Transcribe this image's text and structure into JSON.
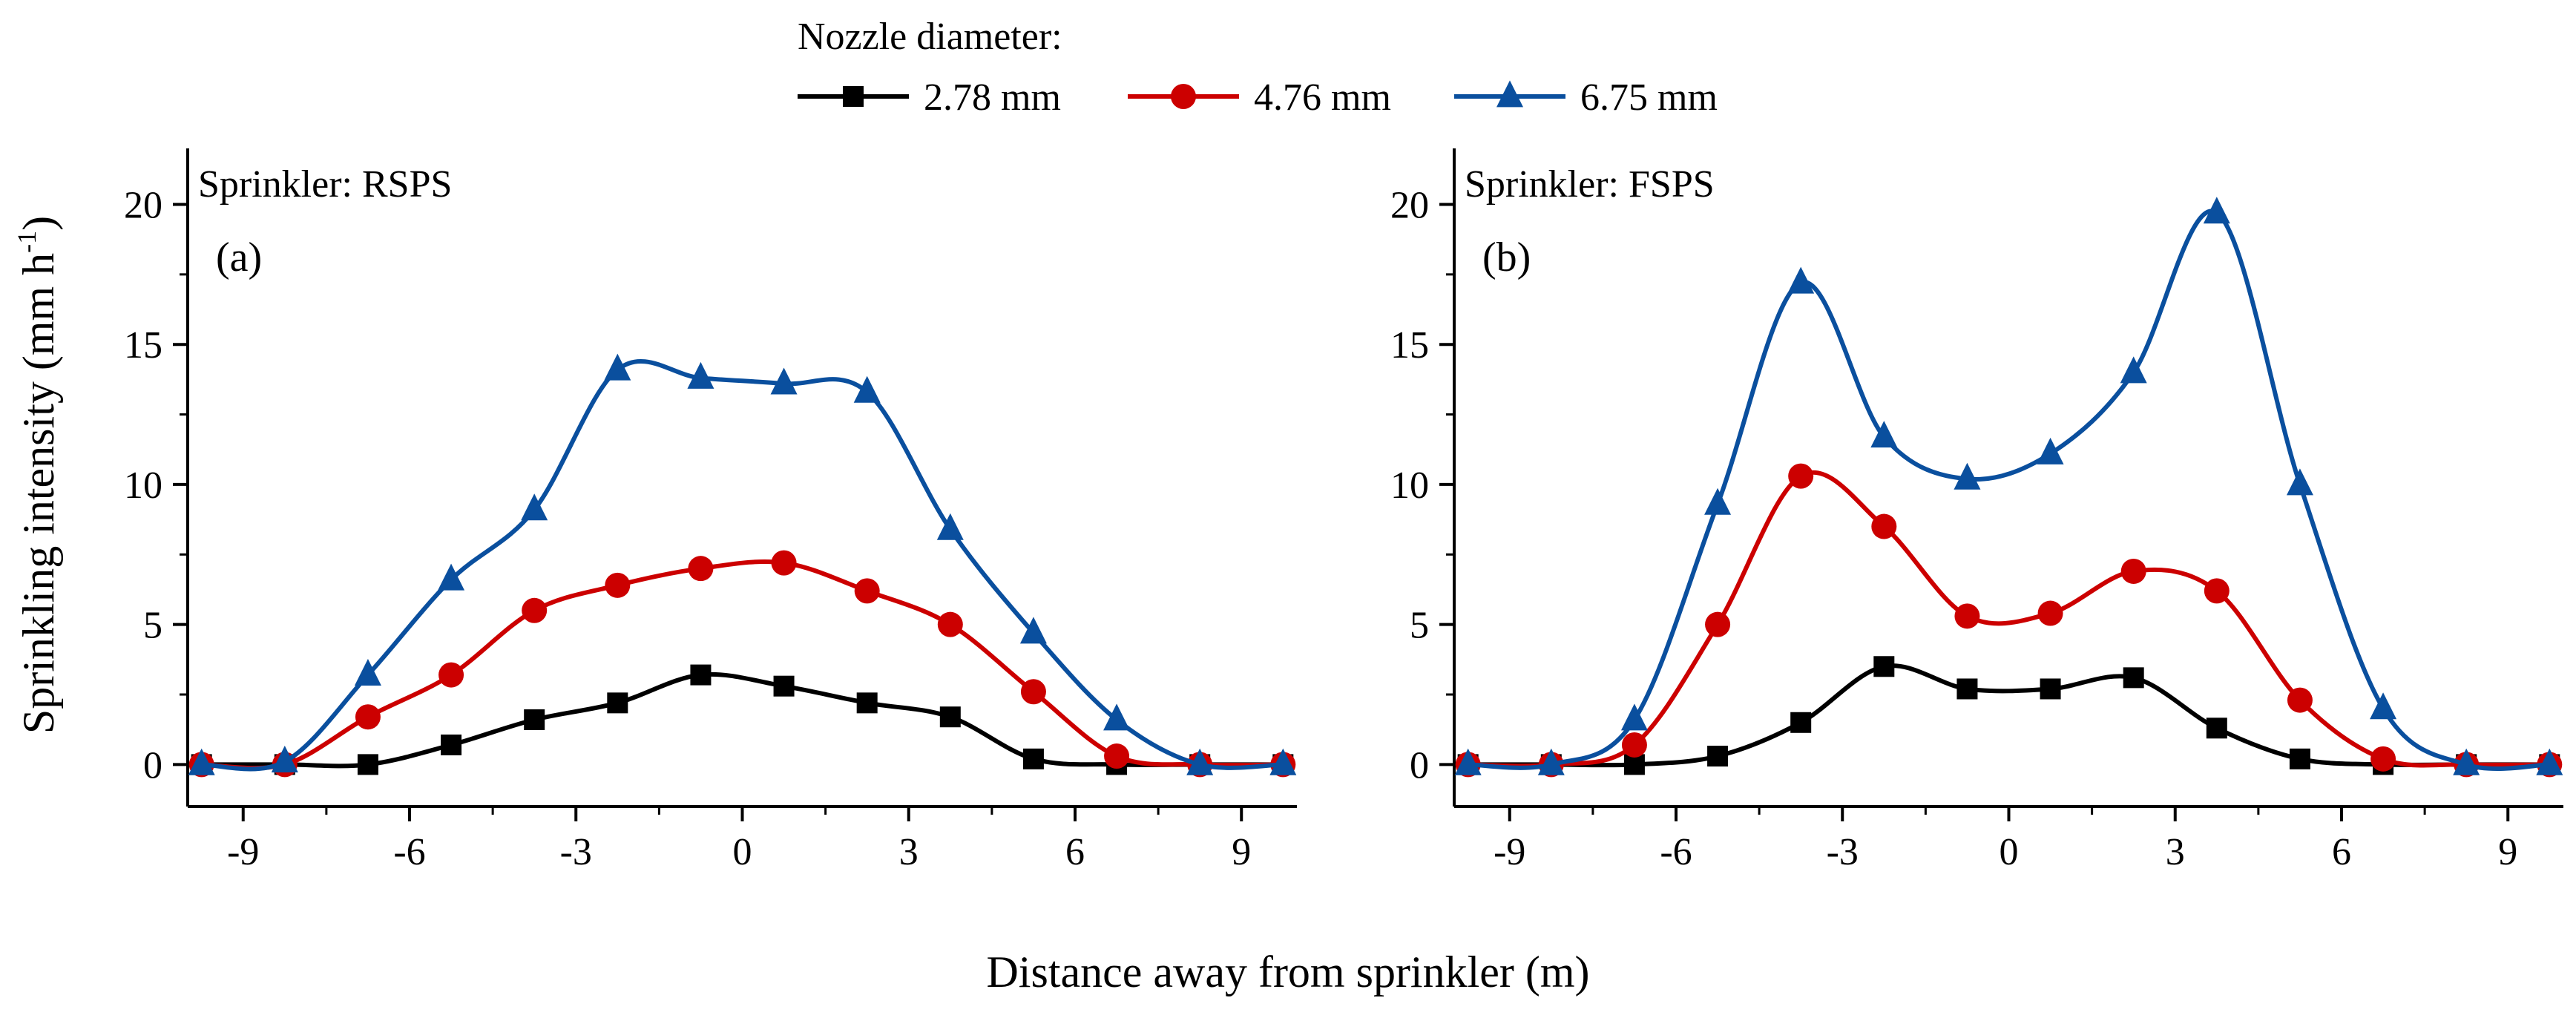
{
  "chart_data": {
    "type": "line",
    "xlabel": "Distance away from sprinkler (m)",
    "ylabel": "Sprinkling intensity (mm h⁻¹)",
    "ylabel_main": "Sprinkling intensity (mm h",
    "ylabel_sup": "-1",
    "ylabel_close": ")",
    "xlim": [
      -10,
      10
    ],
    "ylim": [
      -1.5,
      22
    ],
    "xticks": [
      -9,
      -6,
      -3,
      0,
      3,
      6,
      9
    ],
    "xtick_labels": [
      "-9",
      "-6",
      "-3",
      "0",
      "3",
      "6",
      "9"
    ],
    "yticks": [
      0,
      5,
      10,
      15,
      20
    ],
    "ytick_labels": [
      "0",
      "5",
      "10",
      "15",
      "20"
    ],
    "legend_title": "Nozzle diameter:",
    "legend_position": "top-center",
    "x": [
      -9.75,
      -8.25,
      -6.75,
      -5.25,
      -3.75,
      -2.25,
      -0.75,
      0.75,
      2.25,
      3.75,
      5.25,
      6.75,
      8.25,
      9.75
    ],
    "series_styles": [
      {
        "name": "2.78 mm",
        "color": "#000000",
        "marker": "square"
      },
      {
        "name": "4.76 mm",
        "color": "#cc0000",
        "marker": "circle"
      },
      {
        "name": "6.75 mm",
        "color": "#0a4f9e",
        "marker": "triangle"
      }
    ],
    "panels": [
      {
        "label": "Sprinkler: RSPS",
        "tag": "(a)",
        "series": [
          {
            "name": "2.78 mm",
            "values": [
              0,
              0,
              0,
              0.7,
              1.6,
              2.2,
              3.2,
              2.8,
              2.2,
              1.7,
              0.2,
              0,
              0,
              0
            ]
          },
          {
            "name": "4.76 mm",
            "values": [
              0,
              0,
              1.7,
              3.2,
              5.5,
              6.4,
              7.0,
              7.2,
              6.2,
              5.0,
              2.6,
              0.3,
              0,
              0
            ]
          },
          {
            "name": "6.75 mm",
            "values": [
              0,
              0.1,
              3.2,
              6.6,
              9.1,
              14.1,
              13.8,
              13.6,
              13.3,
              8.4,
              4.7,
              1.6,
              0,
              0
            ]
          }
        ]
      },
      {
        "label": "Sprinkler: FSPS",
        "tag": "(b)",
        "series": [
          {
            "name": "2.78 mm",
            "values": [
              0,
              0,
              0,
              0.3,
              1.5,
              3.5,
              2.7,
              2.7,
              3.1,
              1.3,
              0.2,
              0,
              0,
              0
            ]
          },
          {
            "name": "4.76 mm",
            "values": [
              0,
              0,
              0.7,
              5.0,
              10.3,
              8.5,
              5.3,
              5.4,
              6.9,
              6.2,
              2.3,
              0.2,
              0,
              0
            ]
          },
          {
            "name": "6.75 mm",
            "values": [
              0,
              0,
              1.6,
              9.3,
              17.2,
              11.7,
              10.2,
              11.1,
              14.0,
              19.7,
              10.0,
              2.0,
              0,
              0
            ]
          }
        ]
      }
    ]
  }
}
